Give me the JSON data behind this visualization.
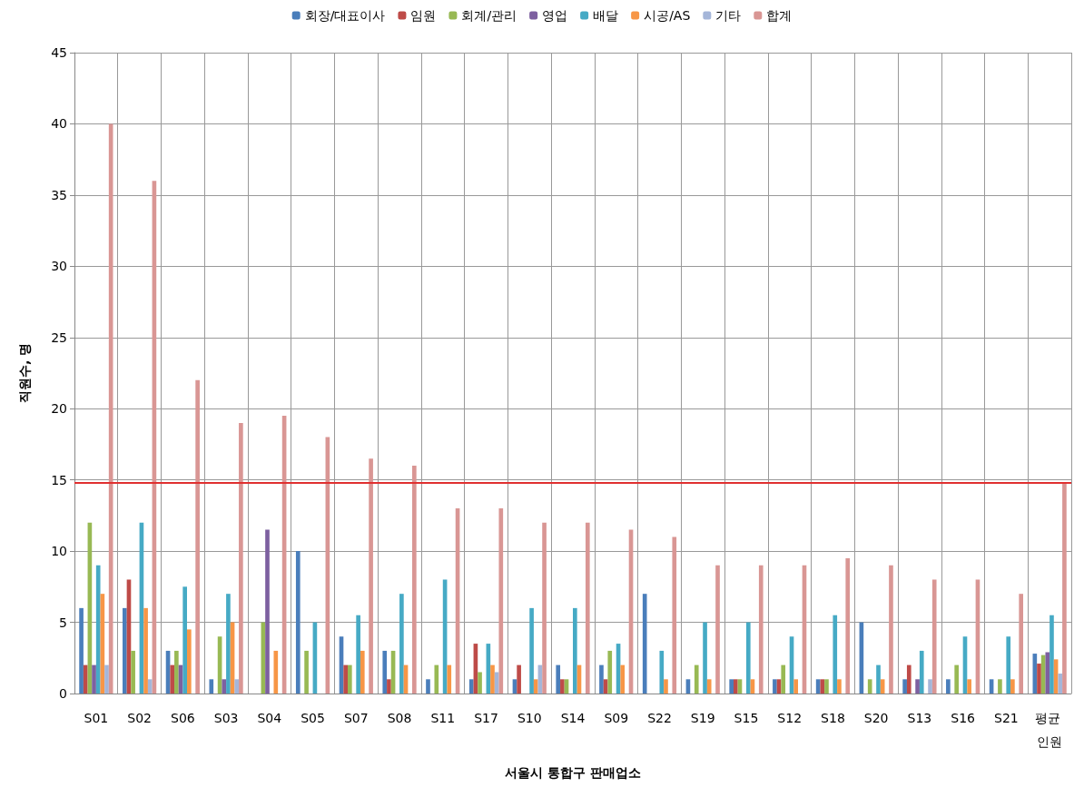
{
  "chart_data": {
    "type": "bar",
    "xlabel": "서울시 통합구 판매업소",
    "ylabel": "직원수, 명",
    "categories": [
      "S01",
      "S02",
      "S06",
      "S03",
      "S04",
      "S05",
      "S07",
      "S08",
      "S11",
      "S17",
      "S10",
      "S14",
      "S09",
      "S22",
      "S19",
      "S15",
      "S12",
      "S18",
      "S20",
      "S13",
      "S16",
      "S21",
      "평균 인원"
    ],
    "series": [
      {
        "name": "회장/대표이사",
        "color": "#4a7ebb",
        "values": [
          6,
          6,
          3,
          1,
          0,
          10,
          4,
          3,
          1,
          1,
          1,
          2,
          2,
          7,
          1,
          1,
          1,
          1,
          5,
          1,
          1,
          1,
          2.8
        ]
      },
      {
        "name": "임원",
        "color": "#be4b48",
        "values": [
          2,
          8,
          2,
          0,
          0,
          0,
          2,
          1,
          0,
          3.5,
          2,
          1,
          1,
          0,
          0,
          1,
          1,
          1,
          0,
          2,
          0,
          0,
          2.1
        ]
      },
      {
        "name": "회계/관리",
        "color": "#98b954",
        "values": [
          12,
          3,
          3,
          4,
          5,
          3,
          2,
          3,
          2,
          1.5,
          0,
          1,
          3,
          0,
          2,
          1,
          2,
          1,
          1,
          0,
          2,
          1,
          2.7
        ]
      },
      {
        "name": "영업",
        "color": "#7d60a0",
        "values": [
          2,
          0,
          2,
          1,
          11.5,
          0,
          0,
          0,
          0,
          0,
          0,
          0,
          0,
          0,
          0,
          0,
          0,
          0,
          0,
          1,
          0,
          0,
          2.9
        ]
      },
      {
        "name": "배달",
        "color": "#46aac5",
        "values": [
          9,
          12,
          7.5,
          7,
          0,
          5,
          5.5,
          7,
          8,
          3.5,
          6,
          6,
          3.5,
          3,
          5,
          5,
          4,
          5.5,
          2,
          3,
          4,
          4,
          5.5
        ]
      },
      {
        "name": "시공/AS",
        "color": "#f79646",
        "values": [
          7,
          6,
          4.5,
          5,
          3,
          0,
          3,
          2,
          2,
          2,
          1,
          2,
          2,
          1,
          1,
          1,
          1,
          1,
          1,
          0,
          1,
          1,
          2.4
        ]
      },
      {
        "name": "기타",
        "color": "#a5b6d9",
        "values": [
          2,
          1,
          0,
          1,
          0,
          0,
          0,
          0,
          0,
          1.5,
          2,
          0,
          0,
          0,
          0,
          0,
          0,
          0,
          0,
          1,
          0,
          0,
          1.4
        ]
      },
      {
        "name": "합계",
        "color": "#d99694",
        "values": [
          40,
          36,
          22,
          19,
          19.5,
          18,
          16.5,
          16,
          13,
          13,
          12,
          12,
          11.5,
          11,
          9,
          9,
          9,
          9.5,
          9,
          8,
          8,
          7,
          14.8
        ]
      }
    ],
    "ylim": [
      0,
      45
    ],
    "yticks": [
      0,
      5,
      10,
      15,
      20,
      25,
      30,
      35,
      40,
      45
    ],
    "ref_lines": [
      {
        "axis": "y",
        "value": 14.8,
        "color": "#e03030"
      }
    ],
    "grid": true,
    "legend": "top"
  }
}
